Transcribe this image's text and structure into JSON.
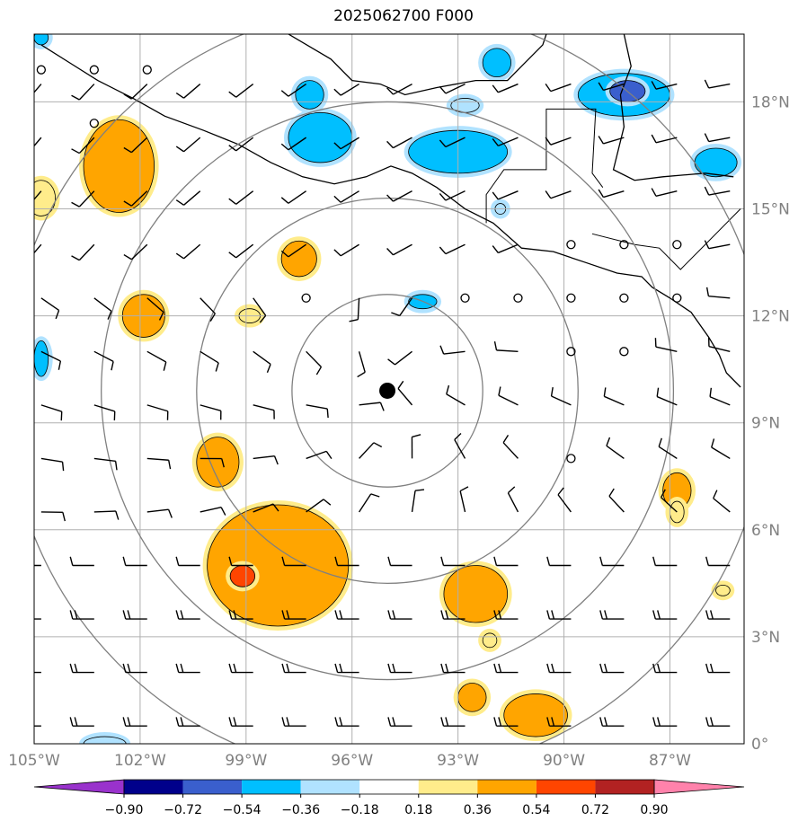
{
  "map": {
    "title": "2025062700 F000",
    "extent": {
      "lon_min": -105.0,
      "lon_max": -84.9,
      "lat_min": 0.0,
      "lat_max": 19.9
    },
    "lon_ticks": [
      {
        "value": -105,
        "label": "105°W"
      },
      {
        "value": -102,
        "label": "102°W"
      },
      {
        "value": -99,
        "label": "99°W"
      },
      {
        "value": -96,
        "label": "96°W"
      },
      {
        "value": -93,
        "label": "93°W"
      },
      {
        "value": -90,
        "label": "90°W"
      },
      {
        "value": -87,
        "label": "87°W"
      }
    ],
    "lat_ticks": [
      {
        "value": 0,
        "label": "0°"
      },
      {
        "value": 3,
        "label": "3°N"
      },
      {
        "value": 6,
        "label": "6°N"
      },
      {
        "value": 9,
        "label": "9°N"
      },
      {
        "value": 12,
        "label": "12°N"
      },
      {
        "value": 15,
        "label": "15°N"
      },
      {
        "value": 18,
        "label": "18°N"
      }
    ],
    "grid": true,
    "center": {
      "lon": -95.0,
      "lat": 9.9
    },
    "range_rings_deg": [
      2.7,
      5.4,
      8.1,
      10.8
    ],
    "tick_label_color": "#808080",
    "ring_color": "#808080"
  },
  "colorbar": {
    "colors": [
      "#9932cc",
      "#00008b",
      "#3a5fcd",
      "#00bfff",
      "#b0e2ff",
      "#ffffff",
      "#ffec8b",
      "#ffa500",
      "#ff4500",
      "#b22222",
      "#ff82ab"
    ],
    "labels": [
      "−0.90",
      "−0.72",
      "−0.54",
      "−0.36",
      "−0.18",
      "0.18",
      "0.36",
      "0.54",
      "0.72",
      "0.90"
    ]
  },
  "anomalies": [
    {
      "lon": -102.6,
      "lat": 16.2,
      "level": 0.54,
      "rx": 1.0,
      "ry": 1.3
    },
    {
      "lon": -104.8,
      "lat": 15.3,
      "level": 0.36,
      "rx": 0.4,
      "ry": 0.5
    },
    {
      "lon": -101.9,
      "lat": 12.0,
      "level": 0.54,
      "rx": 0.6,
      "ry": 0.6
    },
    {
      "lon": -97.5,
      "lat": 13.6,
      "level": 0.54,
      "rx": 0.5,
      "ry": 0.5
    },
    {
      "lon": -98.9,
      "lat": 12.0,
      "level": 0.36,
      "rx": 0.3,
      "ry": 0.2
    },
    {
      "lon": -99.8,
      "lat": 7.9,
      "level": 0.54,
      "rx": 0.6,
      "ry": 0.7
    },
    {
      "lon": -98.1,
      "lat": 5.0,
      "level": 0.54,
      "rx": 2.0,
      "ry": 1.7
    },
    {
      "lon": -99.1,
      "lat": 4.7,
      "level": 0.72,
      "rx": 0.35,
      "ry": 0.3
    },
    {
      "lon": -92.5,
      "lat": 4.2,
      "level": 0.54,
      "rx": 0.9,
      "ry": 0.8
    },
    {
      "lon": -92.1,
      "lat": 2.9,
      "level": 0.36,
      "rx": 0.2,
      "ry": 0.2
    },
    {
      "lon": -92.6,
      "lat": 1.3,
      "level": 0.54,
      "rx": 0.4,
      "ry": 0.4
    },
    {
      "lon": -90.8,
      "lat": 0.8,
      "level": 0.54,
      "rx": 0.9,
      "ry": 0.6
    },
    {
      "lon": -86.8,
      "lat": 7.1,
      "level": 0.54,
      "rx": 0.4,
      "ry": 0.5
    },
    {
      "lon": -86.8,
      "lat": 6.5,
      "level": 0.36,
      "rx": 0.2,
      "ry": 0.3
    },
    {
      "lon": -85.5,
      "lat": 4.3,
      "level": 0.36,
      "rx": 0.2,
      "ry": 0.15
    },
    {
      "lon": -96.9,
      "lat": 17.0,
      "level": -0.54,
      "rx": 0.9,
      "ry": 0.7
    },
    {
      "lon": -97.2,
      "lat": 18.2,
      "level": -0.54,
      "rx": 0.4,
      "ry": 0.4
    },
    {
      "lon": -93.0,
      "lat": 16.6,
      "level": -0.54,
      "rx": 1.4,
      "ry": 0.6
    },
    {
      "lon": -92.8,
      "lat": 17.9,
      "level": -0.36,
      "rx": 0.4,
      "ry": 0.2
    },
    {
      "lon": -91.9,
      "lat": 19.1,
      "level": -0.54,
      "rx": 0.4,
      "ry": 0.4
    },
    {
      "lon": -88.3,
      "lat": 18.2,
      "level": -0.54,
      "rx": 1.3,
      "ry": 0.6
    },
    {
      "lon": -88.2,
      "lat": 18.3,
      "level": -0.72,
      "rx": 0.5,
      "ry": 0.3
    },
    {
      "lon": -85.7,
      "lat": 16.3,
      "level": -0.54,
      "rx": 0.6,
      "ry": 0.4
    },
    {
      "lon": -94.0,
      "lat": 12.4,
      "level": -0.54,
      "rx": 0.4,
      "ry": 0.2
    },
    {
      "lon": -104.8,
      "lat": 10.8,
      "level": -0.54,
      "rx": 0.2,
      "ry": 0.5
    },
    {
      "lon": -104.8,
      "lat": 19.8,
      "level": -0.54,
      "rx": 0.2,
      "ry": 0.2
    },
    {
      "lon": -103.0,
      "lat": 0.0,
      "level": -0.36,
      "rx": 0.6,
      "ry": 0.2
    },
    {
      "lon": -91.8,
      "lat": 15.0,
      "level": -0.36,
      "rx": 0.15,
      "ry": 0.15
    }
  ],
  "calm_points": [
    [
      -104.8,
      18.9
    ],
    [
      -103.3,
      18.9
    ],
    [
      -101.8,
      18.9
    ],
    [
      -103.3,
      17.4
    ],
    [
      -97.3,
      12.5
    ],
    [
      -92.8,
      12.5
    ],
    [
      -91.3,
      12.5
    ],
    [
      -89.8,
      12.5
    ],
    [
      -88.3,
      12.5
    ],
    [
      -86.8,
      12.5
    ],
    [
      -89.8,
      14.0
    ],
    [
      -88.3,
      14.0
    ],
    [
      -86.8,
      14.0
    ],
    [
      -89.8,
      11.0
    ],
    [
      -88.3,
      11.0
    ],
    [
      -89.8,
      8.0
    ]
  ],
  "storm_center": {
    "lon": -95.0,
    "lat": 9.9
  }
}
